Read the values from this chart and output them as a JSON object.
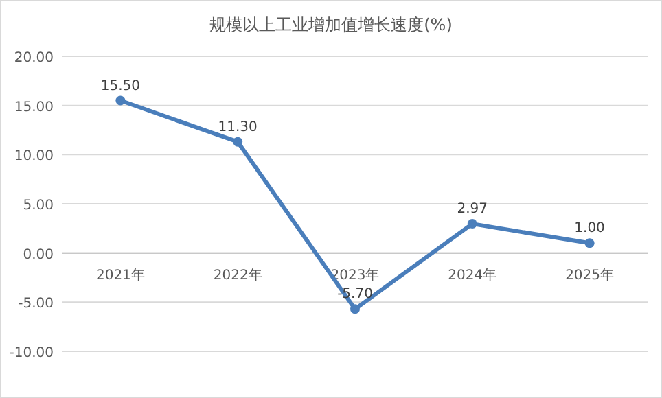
{
  "chart_data": {
    "type": "line",
    "title": "规模以上工业增加值增长速度(%)",
    "categories": [
      "2021年",
      "2022年",
      "2023年",
      "2024年",
      "2025年"
    ],
    "values": [
      15.5,
      11.3,
      -5.7,
      2.97,
      1.0
    ],
    "value_labels": [
      "15.50",
      "11.30",
      "-5.70",
      "2.97",
      "1.00"
    ],
    "color": "#4a7ebb",
    "marker": "circle",
    "line_style": "solid",
    "grid": "y",
    "ylim": [
      -10,
      20
    ],
    "yticks": [
      {
        "value": -10,
        "label": "-10.00"
      },
      {
        "value": -5,
        "label": "-5.00"
      },
      {
        "value": 0,
        "label": "0.00"
      },
      {
        "value": 5,
        "label": "5.00"
      },
      {
        "value": 10,
        "label": "10.00"
      },
      {
        "value": 15,
        "label": "15.00"
      },
      {
        "value": 20,
        "label": "20.00"
      }
    ]
  }
}
